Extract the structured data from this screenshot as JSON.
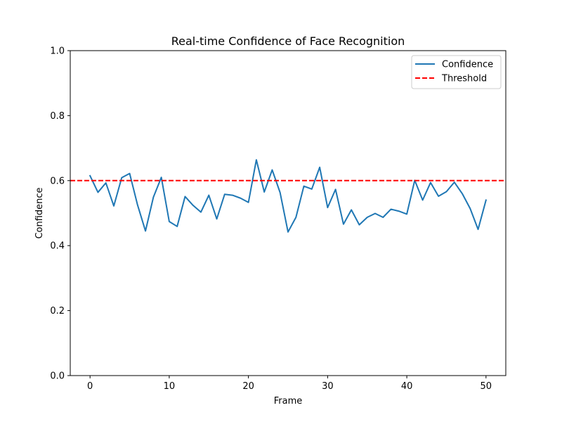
{
  "chart_data": {
    "type": "line",
    "title": "Real-time Confidence of Face Recognition",
    "xlabel": "Frame",
    "ylabel": "Confidence",
    "xlim": [
      -2.5,
      52.5
    ],
    "ylim": [
      0.0,
      1.0
    ],
    "xticks": [
      0,
      10,
      20,
      30,
      40,
      50
    ],
    "yticks": [
      0.0,
      0.2,
      0.4,
      0.6,
      0.8,
      1.0
    ],
    "xtick_labels": [
      "0",
      "10",
      "20",
      "30",
      "40",
      "50"
    ],
    "ytick_labels": [
      "0.0",
      "0.2",
      "0.4",
      "0.6",
      "0.8",
      "1.0"
    ],
    "grid": false,
    "legend_position": "top-right",
    "x": [
      0,
      1,
      2,
      3,
      4,
      5,
      6,
      7,
      8,
      9,
      10,
      11,
      12,
      13,
      14,
      15,
      16,
      17,
      18,
      19,
      20,
      21,
      22,
      23,
      24,
      25,
      26,
      27,
      28,
      29,
      30,
      31,
      32,
      33,
      34,
      35,
      36,
      37,
      38,
      39,
      40,
      41,
      42,
      43,
      44,
      45,
      46,
      47,
      48,
      49,
      50
    ],
    "series": [
      {
        "name": "Confidence",
        "style": "solid",
        "color": "#1f77b4",
        "values": [
          0.615,
          0.564,
          0.593,
          0.522,
          0.609,
          0.622,
          0.525,
          0.445,
          0.549,
          0.61,
          0.474,
          0.459,
          0.551,
          0.524,
          0.503,
          0.555,
          0.482,
          0.558,
          0.555,
          0.546,
          0.533,
          0.664,
          0.565,
          0.633,
          0.563,
          0.442,
          0.487,
          0.583,
          0.574,
          0.641,
          0.517,
          0.573,
          0.466,
          0.51,
          0.464,
          0.487,
          0.499,
          0.487,
          0.512,
          0.506,
          0.497,
          0.601,
          0.54,
          0.594,
          0.552,
          0.566,
          0.595,
          0.56,
          0.514,
          0.45,
          0.54
        ]
      },
      {
        "name": "Threshold",
        "style": "dashed",
        "color": "#ff0000",
        "constant": 0.6
      }
    ]
  }
}
